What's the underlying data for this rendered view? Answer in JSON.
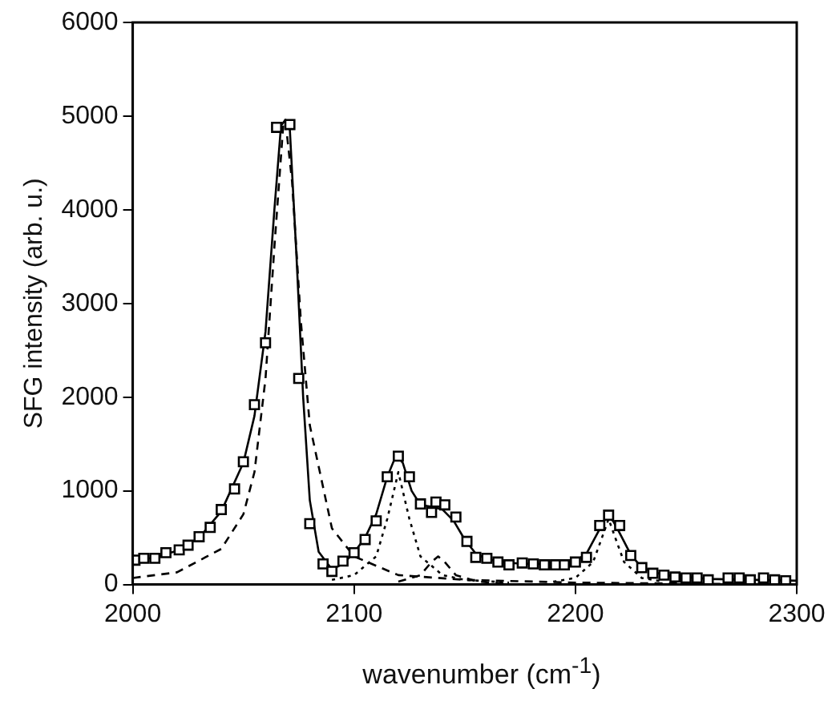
{
  "chart_data": {
    "type": "scatter",
    "xlabel": "wavenumber (cm$^{-1}$)",
    "ylabel": "SFG intensity (arb. u.)",
    "xlim": [
      2000,
      2300
    ],
    "xticks": [
      2000,
      2100,
      2200,
      2300
    ],
    "ylim": [
      0,
      6000
    ],
    "yticks": [
      0,
      1000,
      2000,
      3000,
      4000,
      5000,
      6000
    ],
    "grid": false,
    "legend": false,
    "series": [
      {
        "type": "line",
        "color": "#000000",
        "line_style": "dashed",
        "marker": "none",
        "x": [
          2000,
          2020,
          2040,
          2050,
          2055,
          2060,
          2064,
          2068,
          2069,
          2072,
          2076,
          2080,
          2090,
          2100,
          2120,
          2150,
          2200,
          2300
        ],
        "values": [
          70,
          130,
          380,
          750,
          1200,
          2200,
          3600,
          4900,
          4950,
          4300,
          2800,
          1700,
          600,
          300,
          100,
          50,
          20,
          0
        ]
      },
      {
        "type": "line",
        "color": "#000000",
        "line_style": "dotted",
        "marker": "none",
        "x": [
          2090,
          2100,
          2110,
          2115,
          2120,
          2125,
          2130,
          2140,
          2150,
          2170
        ],
        "values": [
          50,
          100,
          300,
          700,
          1200,
          700,
          300,
          100,
          50,
          20
        ]
      },
      {
        "type": "line",
        "color": "#000000",
        "line_style": "dashed",
        "marker": "none",
        "x": [
          2120,
          2130,
          2135,
          2138,
          2141,
          2146,
          2156,
          2170
        ],
        "values": [
          30,
          100,
          240,
          300,
          240,
          100,
          30,
          10
        ]
      },
      {
        "type": "line",
        "color": "#000000",
        "line_style": "dotted",
        "marker": "none",
        "x": [
          2190,
          2200,
          2208,
          2212,
          2215,
          2218,
          2222,
          2230,
          2240
        ],
        "values": [
          30,
          70,
          240,
          500,
          700,
          500,
          240,
          70,
          30
        ]
      },
      {
        "type": "line",
        "color": "#000000",
        "line_style": "solid",
        "marker": "none",
        "x": [
          2000,
          2010,
          2020,
          2030,
          2040,
          2050,
          2055,
          2060,
          2064,
          2067,
          2069,
          2071,
          2074,
          2077,
          2080,
          2084,
          2090,
          2095,
          2100,
          2105,
          2110,
          2115,
          2119,
          2122,
          2126,
          2130,
          2135,
          2140,
          2145,
          2150,
          2155,
          2160,
          2170,
          2180,
          2190,
          2200,
          2205,
          2210,
          2214,
          2217,
          2220,
          2225,
          2230,
          2240,
          2260,
          2300
        ],
        "values": [
          250,
          290,
          360,
          500,
          780,
          1300,
          1800,
          2700,
          4000,
          4900,
          4960,
          4850,
          3500,
          2000,
          900,
          350,
          160,
          220,
          340,
          500,
          750,
          1150,
          1380,
          1300,
          1000,
          850,
          830,
          800,
          680,
          480,
          330,
          270,
          230,
          220,
          220,
          250,
          330,
          550,
          720,
          680,
          550,
          320,
          180,
          100,
          60,
          40
        ]
      },
      {
        "color": "#000000",
        "marker": "square",
        "x": [
          2001,
          2005,
          2010,
          2015,
          2021,
          2025,
          2030,
          2035,
          2040,
          2046,
          2050,
          2055,
          2060,
          2065,
          2071,
          2075,
          2080,
          2086,
          2090,
          2095,
          2100,
          2105,
          2110,
          2115,
          2120,
          2125,
          2130,
          2135,
          2137,
          2141,
          2146,
          2151,
          2155,
          2160,
          2165,
          2170,
          2176,
          2181,
          2186,
          2191,
          2195,
          2200,
          2205,
          2211,
          2215,
          2220,
          2225,
          2230,
          2235,
          2240,
          2245,
          2250,
          2255,
          2260,
          2269,
          2274,
          2279,
          2285,
          2290,
          2295
        ],
        "values": [
          260,
          280,
          280,
          340,
          370,
          420,
          510,
          610,
          800,
          1020,
          1310,
          1920,
          2580,
          4880,
          4910,
          2200,
          650,
          220,
          140,
          250,
          340,
          480,
          680,
          1150,
          1370,
          1150,
          860,
          770,
          880,
          850,
          720,
          460,
          290,
          280,
          240,
          210,
          230,
          220,
          210,
          210,
          210,
          240,
          290,
          630,
          740,
          630,
          310,
          180,
          120,
          100,
          80,
          70,
          70,
          50,
          70,
          70,
          50,
          70,
          50,
          40
        ]
      }
    ]
  }
}
